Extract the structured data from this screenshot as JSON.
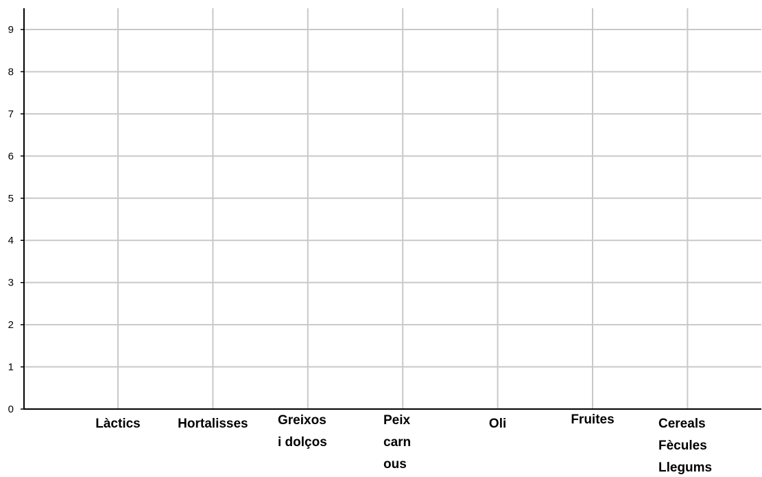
{
  "chart_data": {
    "type": "bar",
    "title": "",
    "xlabel": "",
    "ylabel": "",
    "categories": [
      [
        "Làctics"
      ],
      [
        "Hortalisses"
      ],
      [
        "Greixos",
        "i dolços"
      ],
      [
        "Peix",
        "carn",
        "ous"
      ],
      [
        "Oli"
      ],
      [
        "Fruites"
      ],
      [
        "Cereals",
        "Fècules",
        "Llegums"
      ]
    ],
    "values": [
      null,
      null,
      null,
      null,
      null,
      null,
      null
    ],
    "ylim": [
      0,
      9
    ],
    "yticks": [
      0,
      1,
      2,
      3,
      4,
      5,
      6,
      7,
      8,
      9
    ],
    "grid": true,
    "colors": {
      "grid": "#c8c8c8",
      "axis": "#000000",
      "text": "#000000"
    }
  }
}
